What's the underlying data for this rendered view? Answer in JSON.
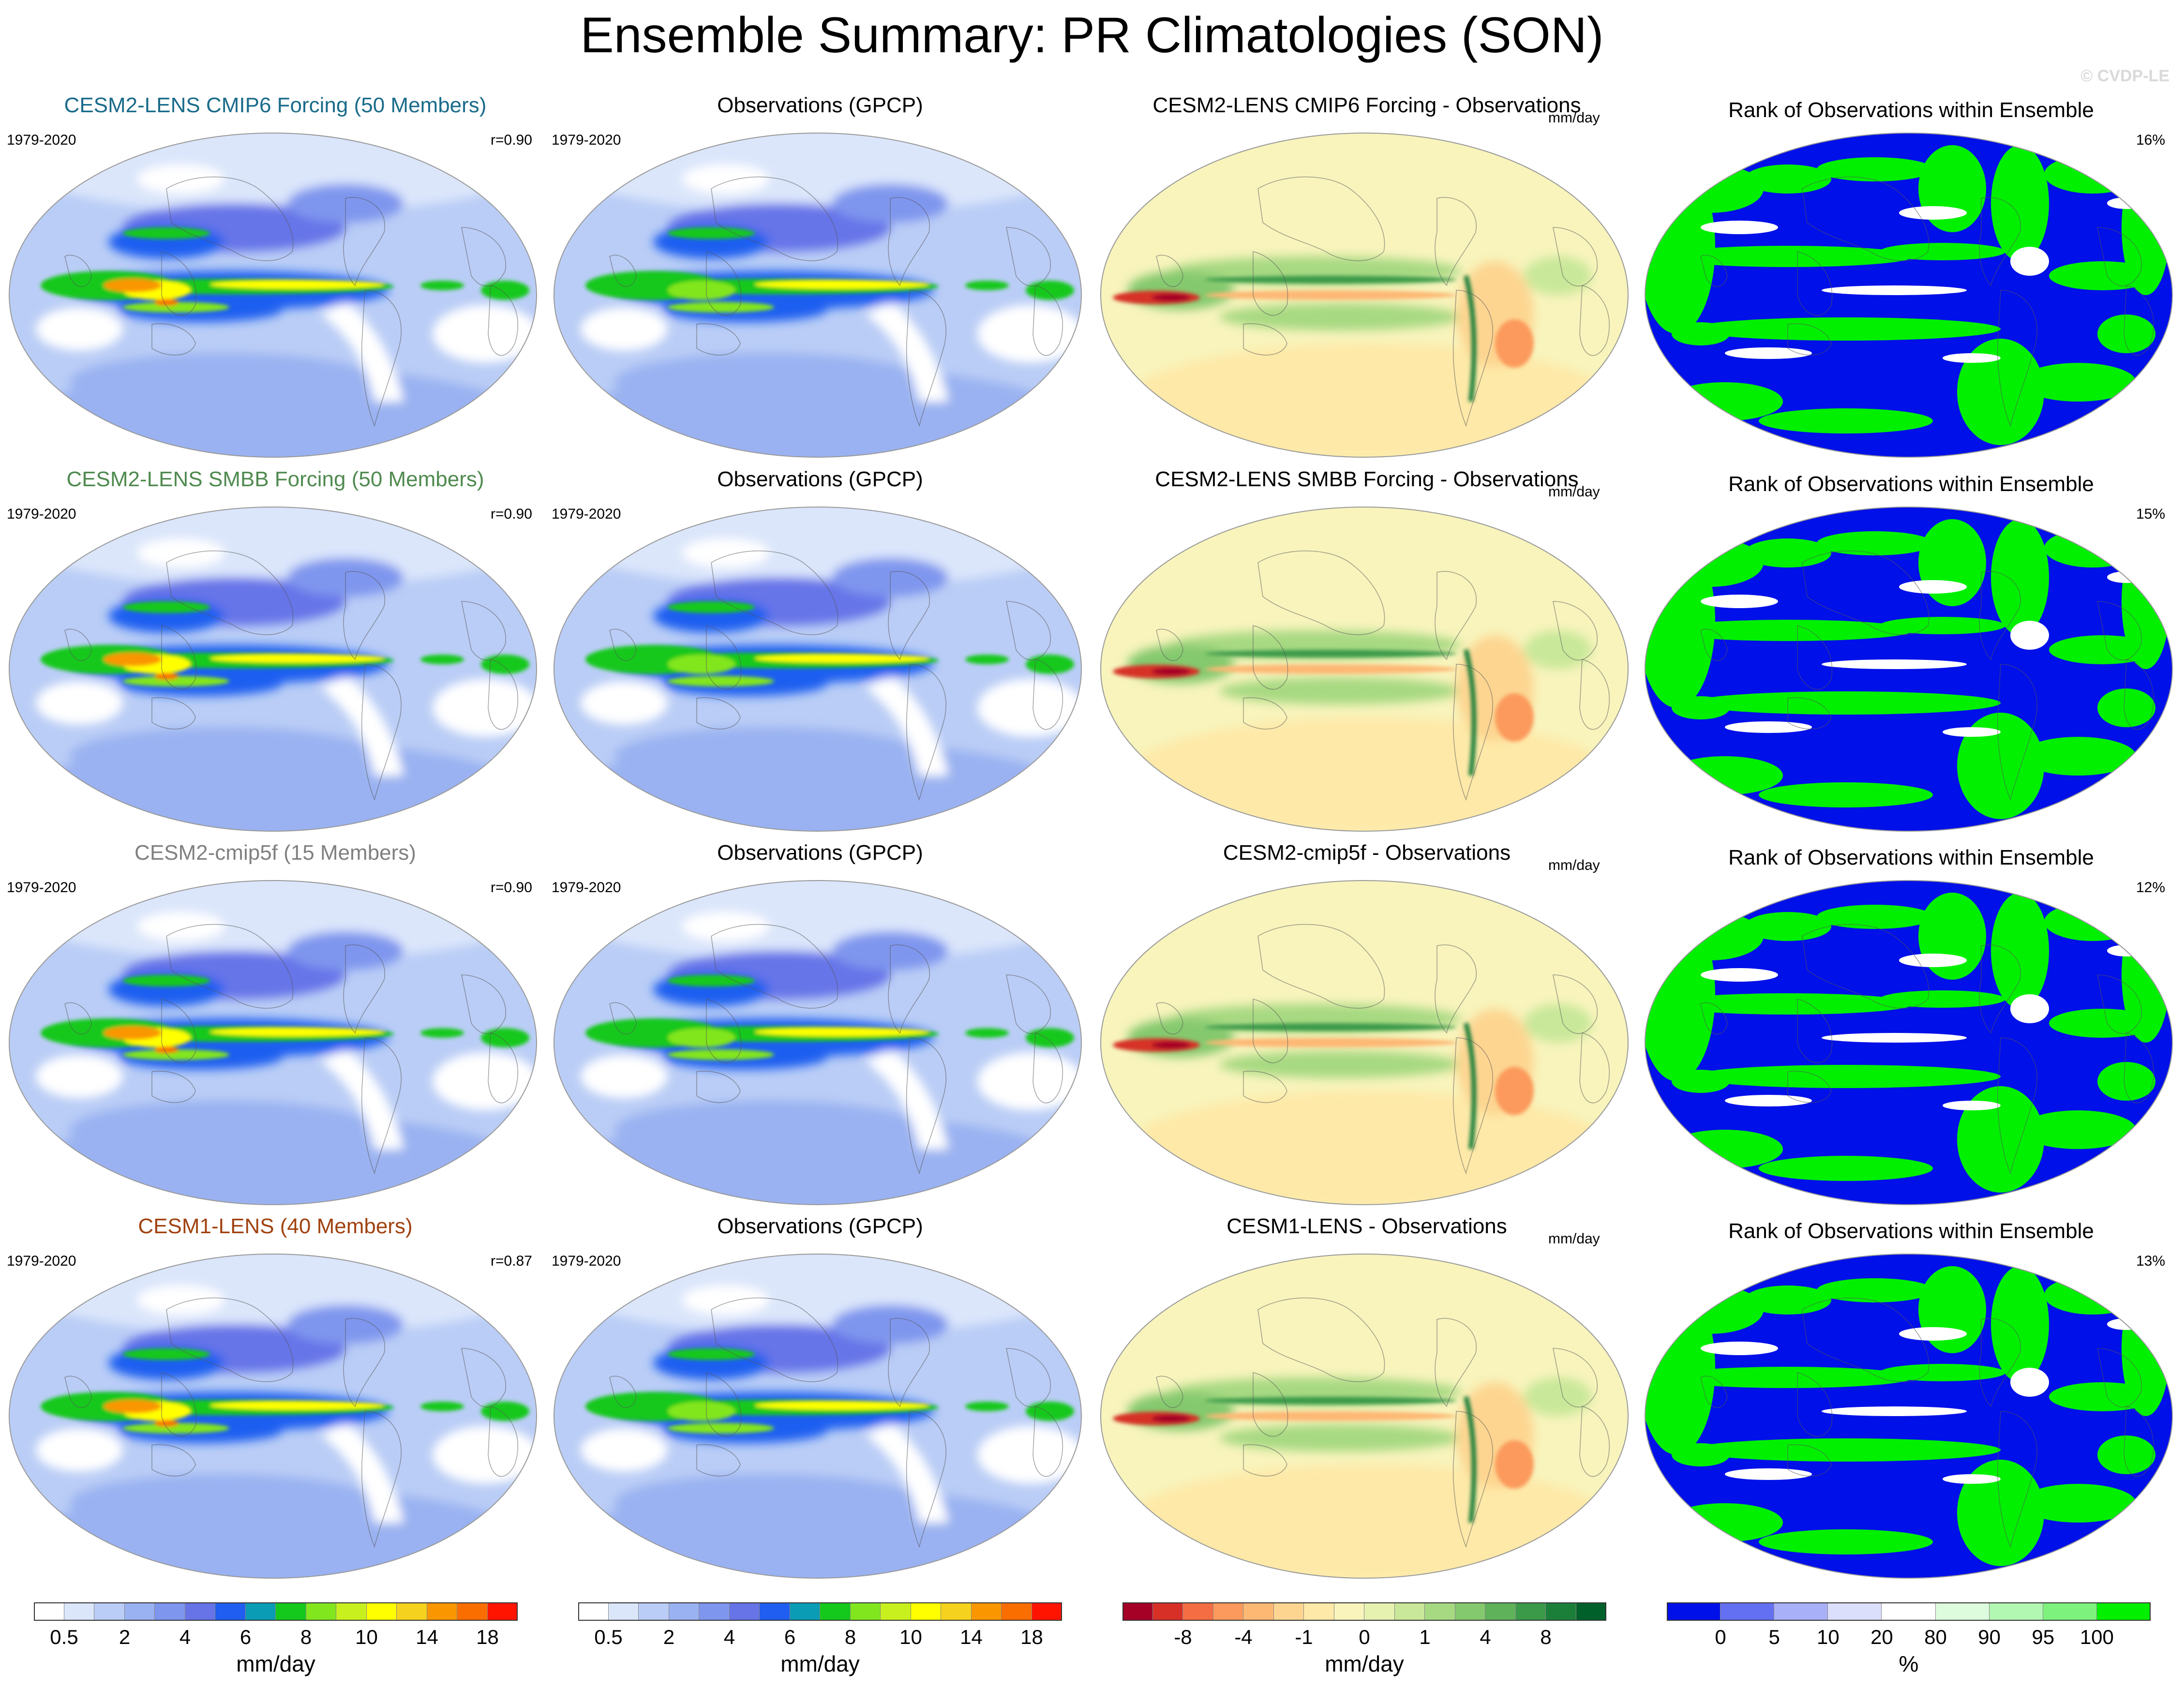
{
  "title": "Ensemble Summary: PR Climatologies (SON)",
  "copyright": "© CVDP-LE",
  "rows": [
    {
      "model_title": "CESM2-LENS CMIP6 Forcing (50 Members)",
      "model_color": "#1a6b8a",
      "period": "1979-2020",
      "corr": "r=0.90",
      "obs_title": "Observations (GPCP)",
      "obs_period": "1979-2020",
      "diff_title": "CESM2-LENS CMIP6 Forcing - Observations",
      "diff_units": "mm/day",
      "rank_title": "Rank of Observations within Ensemble",
      "rank_pct": "16%"
    },
    {
      "model_title": "CESM2-LENS SMBB Forcing (50 Members)",
      "model_color": "#4f8a4f",
      "period": "1979-2020",
      "corr": "r=0.90",
      "obs_title": "Observations (GPCP)",
      "obs_period": "1979-2020",
      "diff_title": "CESM2-LENS SMBB Forcing - Observations",
      "diff_units": "mm/day",
      "rank_title": "Rank of Observations within Ensemble",
      "rank_pct": "15%"
    },
    {
      "model_title": "CESM2-cmip5f (15 Members)",
      "model_color": "#808080",
      "period": "1979-2020",
      "corr": "r=0.90",
      "obs_title": "Observations (GPCP)",
      "obs_period": "1979-2020",
      "diff_title": "CESM2-cmip5f - Observations",
      "diff_units": "mm/day",
      "rank_title": "Rank of Observations within Ensemble",
      "rank_pct": "12%"
    },
    {
      "model_title": "CESM1-LENS (40 Members)",
      "model_color": "#a0420f",
      "period": "1979-2020",
      "corr": "r=0.87",
      "obs_title": "Observations (GPCP)",
      "obs_period": "1979-2020",
      "diff_title": "CESM1-LENS - Observations",
      "diff_units": "mm/day",
      "rank_title": "Rank of Observations within Ensemble",
      "rank_pct": "13%"
    }
  ],
  "colorbars": [
    {
      "name": "precip",
      "units": "mm/day",
      "colors": [
        "#ffffff",
        "#dbe6fb",
        "#bacdf6",
        "#9ab2f1",
        "#7f96ee",
        "#6674e8",
        "#1f5ef0",
        "#0a9bb5",
        "#14c81c",
        "#82e61e",
        "#c8f01e",
        "#ffff00",
        "#f5d21e",
        "#fa9600",
        "#fa6e00",
        "#ff1400"
      ],
      "ticks": [
        "0.5",
        "2",
        "4",
        "6",
        "8",
        "10",
        "14",
        "18"
      ]
    },
    {
      "name": "precip-obs",
      "units": "mm/day",
      "colors": [
        "#ffffff",
        "#dbe6fb",
        "#bacdf6",
        "#9ab2f1",
        "#7f96ee",
        "#6674e8",
        "#1f5ef0",
        "#0a9bb5",
        "#14c81c",
        "#82e61e",
        "#c8f01e",
        "#ffff00",
        "#f5d21e",
        "#fa9600",
        "#fa6e00",
        "#ff1400"
      ],
      "ticks": [
        "0.5",
        "2",
        "4",
        "6",
        "8",
        "10",
        "14",
        "18"
      ]
    },
    {
      "name": "difference",
      "units": "mm/day",
      "colors": [
        "#a50026",
        "#d73027",
        "#f46d43",
        "#fb9a5c",
        "#fdb874",
        "#fdd591",
        "#fee9a8",
        "#f8f4bc",
        "#e6f2b0",
        "#c9e89a",
        "#a7d982",
        "#85c96e",
        "#5fb25a",
        "#3a9a49",
        "#1b7f3a",
        "#00602a"
      ],
      "ticks": [
        "-8",
        "-4",
        "-1",
        "0",
        "1",
        "4",
        "8"
      ]
    },
    {
      "name": "rank",
      "units": "%",
      "colors": [
        "#0010e8",
        "#6470f2",
        "#a8b0f7",
        "#dcdffb",
        "#ffffff",
        "#ddfbdd",
        "#b2f7b2",
        "#7df27d",
        "#00f000"
      ],
      "ticks": [
        "0",
        "5",
        "10",
        "20",
        "80",
        "90",
        "95",
        "100"
      ]
    }
  ]
}
